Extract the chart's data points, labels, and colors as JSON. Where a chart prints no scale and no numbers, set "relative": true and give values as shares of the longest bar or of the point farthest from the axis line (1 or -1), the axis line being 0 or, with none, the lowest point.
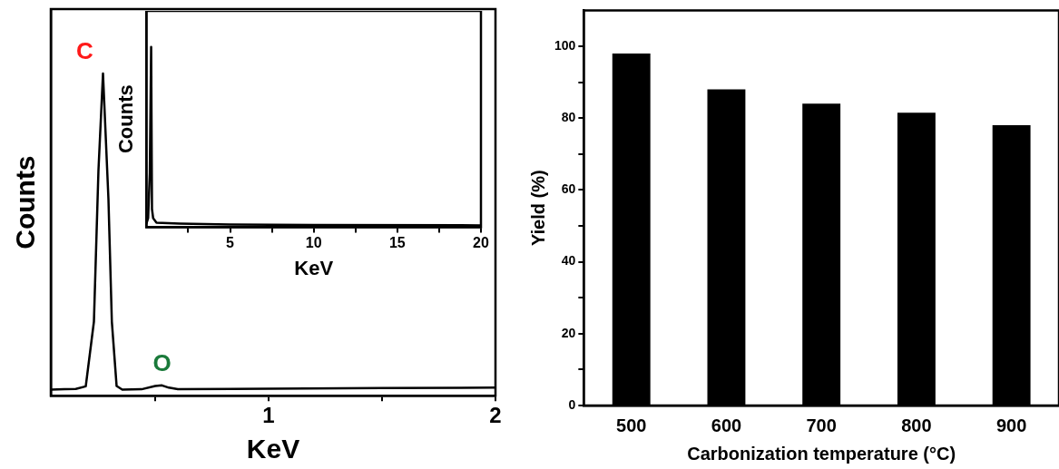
{
  "chart_data": [
    {
      "type": "line",
      "xlabel": "KeV",
      "ylabel": "Counts",
      "relative": true,
      "color": "#000000",
      "x": [
        0.04,
        0.1,
        0.15,
        0.194,
        0.23,
        0.25,
        0.27,
        0.294,
        0.309,
        0.33,
        0.355,
        0.44,
        0.5,
        0.53,
        0.56,
        0.6,
        1.0,
        1.5,
        2.0
      ],
      "values": [
        0.019,
        0.02,
        0.021,
        0.029,
        0.23,
        0.7,
        1.0,
        0.61,
        0.23,
        0.03,
        0.019,
        0.02,
        0.03,
        0.032,
        0.025,
        0.02,
        0.022,
        0.024,
        0.025
      ],
      "xlim": [
        0.04,
        2
      ],
      "xticks": [
        {
          "value": 0.5,
          "label": null
        },
        1,
        {
          "value": 1.5,
          "label": null
        },
        2
      ],
      "annotations": [
        {
          "text": "C",
          "x": 0.27,
          "y": 1.0
        },
        {
          "text": "O",
          "x": 0.53,
          "y": 0.032
        }
      ]
    },
    {
      "type": "line",
      "xlabel": "KeV",
      "ylabel": "Counts",
      "relative": true,
      "color": "#000000",
      "x": [
        0,
        0.1,
        0.2,
        0.28,
        0.33,
        0.4,
        0.6,
        2,
        5,
        10,
        20
      ],
      "values": [
        0.02,
        0.05,
        0.3,
        1.0,
        0.1,
        0.05,
        0.025,
        0.02,
        0.015,
        0.012,
        0.01
      ],
      "xlim": [
        0,
        20
      ],
      "xticks": [
        {
          "value": 2.5,
          "label": null
        },
        5,
        {
          "value": 7.5,
          "label": null
        },
        10,
        {
          "value": 12.5,
          "label": null
        },
        15,
        {
          "value": 17.5,
          "label": null
        },
        20
      ]
    },
    {
      "type": "bar",
      "xlabel": "Carbonization temperature (°C)",
      "ylabel": "Yield (%)",
      "color": "#000000",
      "categories": [
        "500",
        "600",
        "700",
        "800",
        "900"
      ],
      "values": [
        98,
        88,
        84,
        81.5,
        78
      ],
      "ylim": [
        0,
        110
      ],
      "yticks": [
        0,
        {
          "value": 10,
          "label": null
        },
        20,
        {
          "value": 30,
          "label": null
        },
        40,
        {
          "value": 50,
          "label": null
        },
        60,
        {
          "value": 70,
          "label": null
        },
        80,
        {
          "value": 90,
          "label": null
        },
        100
      ]
    }
  ]
}
